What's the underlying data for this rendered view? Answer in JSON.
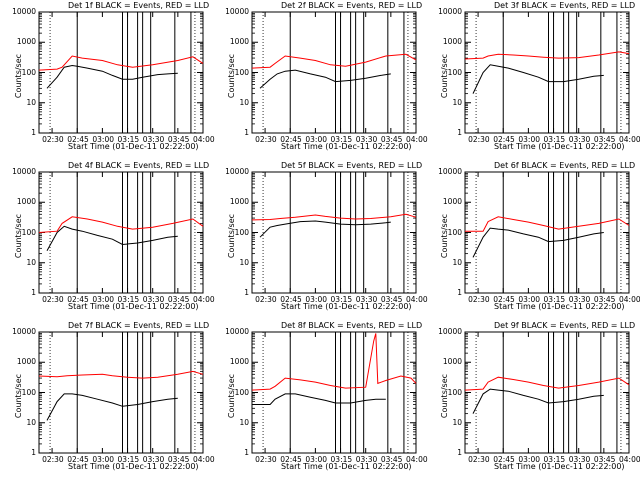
{
  "window": {
    "title": ""
  },
  "chart_data": [
    {
      "type": "line",
      "title": "Det 1f BLACK = Events, RED = LLD",
      "xlabel": "Start Time (01-Dec-11 02:22:00)",
      "ylabel": "Counts/sec",
      "y_scale": "log",
      "ylim": [
        1,
        10000
      ],
      "x_ticks": [
        "02:30",
        "02:45",
        "03:00",
        "03:15",
        "03:30",
        "03:45",
        "04:00"
      ],
      "y_ticks": [
        "1",
        "10",
        "100",
        "1000",
        "10000"
      ],
      "grid": false,
      "series": [
        {
          "color": "#000000",
          "x": [
            2.45,
            2.55,
            2.62,
            2.7,
            2.75,
            2.85,
            3.0,
            3.1,
            3.2,
            3.3,
            3.4,
            3.55,
            3.65,
            3.75
          ],
          "values": [
            30,
            70,
            150,
            170,
            160,
            140,
            110,
            80,
            60,
            60,
            70,
            85,
            90,
            95
          ]
        },
        {
          "color": "#ff0000",
          "x": [
            2.37,
            2.55,
            2.6,
            2.7,
            2.8,
            3.0,
            3.15,
            3.3,
            3.5,
            3.75,
            3.9,
            4.0
          ],
          "values": [
            120,
            130,
            150,
            350,
            300,
            250,
            180,
            150,
            180,
            250,
            330,
            200
          ]
        }
      ]
    },
    {
      "type": "line",
      "title": "Det 2f BLACK = Events, RED = LLD",
      "xlabel": "Start Time (01-Dec-11 02:22:00)",
      "ylabel": "Counts/sec",
      "y_scale": "log",
      "ylim": [
        1,
        10000
      ],
      "x_ticks": [
        "02:30",
        "02:45",
        "03:00",
        "03:15",
        "03:30",
        "03:45",
        "04:00"
      ],
      "y_ticks": [
        "1",
        "10",
        "100",
        "1000",
        "10000"
      ],
      "grid": false,
      "series": [
        {
          "color": "#000000",
          "x": [
            2.45,
            2.55,
            2.62,
            2.7,
            2.8,
            2.95,
            3.1,
            3.2,
            3.35,
            3.5,
            3.65,
            3.75
          ],
          "values": [
            30,
            60,
            90,
            110,
            120,
            90,
            70,
            50,
            55,
            65,
            80,
            90
          ]
        },
        {
          "color": "#ff0000",
          "x": [
            2.37,
            2.55,
            2.6,
            2.7,
            2.85,
            3.0,
            3.15,
            3.3,
            3.5,
            3.7,
            3.9,
            4.0
          ],
          "values": [
            140,
            150,
            200,
            350,
            300,
            250,
            180,
            160,
            220,
            350,
            400,
            260
          ]
        }
      ]
    },
    {
      "type": "line",
      "title": "Det 3f BLACK = Events, RED = LLD",
      "xlabel": "Start Time (01-Dec-11 02:22:00)",
      "ylabel": "Counts/sec",
      "y_scale": "log",
      "ylim": [
        1,
        10000
      ],
      "x_ticks": [
        "02:30",
        "02:45",
        "03:00",
        "03:15",
        "03:30",
        "03:45",
        "04:00"
      ],
      "y_ticks": [
        "1",
        "10",
        "100",
        "1000",
        "10000"
      ],
      "grid": false,
      "series": [
        {
          "color": "#000000",
          "x": [
            2.45,
            2.55,
            2.62,
            2.7,
            2.8,
            2.95,
            3.1,
            3.2,
            3.35,
            3.5,
            3.65,
            3.75
          ],
          "values": [
            20,
            100,
            180,
            160,
            140,
            100,
            70,
            50,
            50,
            60,
            75,
            80
          ]
        },
        {
          "color": "#ff0000",
          "x": [
            2.37,
            2.55,
            2.6,
            2.7,
            2.85,
            3.0,
            3.15,
            3.3,
            3.5,
            3.7,
            3.9,
            4.0
          ],
          "values": [
            280,
            300,
            350,
            400,
            380,
            350,
            320,
            300,
            310,
            380,
            480,
            420
          ]
        }
      ]
    },
    {
      "type": "line",
      "title": "Det 4f BLACK = Events, RED = LLD",
      "xlabel": "Start Time (01-Dec-11 02:22:00)",
      "ylabel": "Counts/sec",
      "y_scale": "log",
      "ylim": [
        1,
        10000
      ],
      "x_ticks": [
        "02:30",
        "02:45",
        "03:00",
        "03:15",
        "03:30",
        "03:45",
        "04:00"
      ],
      "y_ticks": [
        "1",
        "10",
        "100",
        "1000",
        "10000"
      ],
      "grid": false,
      "series": [
        {
          "color": "#000000",
          "x": [
            2.45,
            2.55,
            2.62,
            2.7,
            2.8,
            2.95,
            3.1,
            3.2,
            3.35,
            3.5,
            3.65,
            3.75
          ],
          "values": [
            25,
            100,
            160,
            130,
            110,
            80,
            60,
            40,
            45,
            55,
            70,
            75
          ]
        },
        {
          "color": "#ff0000",
          "x": [
            2.37,
            2.55,
            2.6,
            2.7,
            2.85,
            3.0,
            3.15,
            3.3,
            3.5,
            3.7,
            3.9,
            4.0
          ],
          "values": [
            100,
            110,
            200,
            330,
            280,
            220,
            160,
            130,
            150,
            200,
            280,
            160
          ]
        }
      ]
    },
    {
      "type": "line",
      "title": "Det 5f BLACK = Events, RED = LLD",
      "xlabel": "Start Time (01-Dec-11 02:22:00)",
      "ylabel": "Counts/sec",
      "y_scale": "log",
      "ylim": [
        1,
        10000
      ],
      "x_ticks": [
        "02:30",
        "02:45",
        "03:00",
        "03:15",
        "03:30",
        "03:45",
        "04:00"
      ],
      "y_ticks": [
        "1",
        "10",
        "100",
        "1000",
        "10000"
      ],
      "grid": false,
      "series": [
        {
          "color": "#000000",
          "x": [
            2.45,
            2.55,
            2.62,
            2.7,
            2.85,
            3.0,
            3.1,
            3.25,
            3.4,
            3.55,
            3.7,
            3.75
          ],
          "values": [
            70,
            150,
            170,
            190,
            230,
            240,
            220,
            190,
            180,
            190,
            210,
            220
          ]
        },
        {
          "color": "#ff0000",
          "x": [
            2.37,
            2.55,
            2.65,
            2.8,
            3.0,
            3.1,
            3.25,
            3.4,
            3.55,
            3.75,
            3.9,
            4.0
          ],
          "values": [
            260,
            270,
            290,
            320,
            380,
            340,
            300,
            280,
            290,
            330,
            400,
            320
          ]
        }
      ]
    },
    {
      "type": "line",
      "title": "Det 6f BLACK = Events, RED = LLD",
      "xlabel": "Start Time (01-Dec-11 02:22:00)",
      "ylabel": "Counts/sec",
      "y_scale": "log",
      "ylim": [
        1,
        10000
      ],
      "x_ticks": [
        "02:30",
        "02:45",
        "03:00",
        "03:15",
        "03:30",
        "03:45",
        "04:00"
      ],
      "y_ticks": [
        "1",
        "10",
        "100",
        "1000",
        "10000"
      ],
      "grid": false,
      "series": [
        {
          "color": "#000000",
          "x": [
            2.45,
            2.55,
            2.62,
            2.7,
            2.8,
            2.95,
            3.1,
            3.2,
            3.35,
            3.5,
            3.65,
            3.75
          ],
          "values": [
            15,
            70,
            140,
            130,
            120,
            90,
            70,
            50,
            55,
            70,
            90,
            100
          ]
        },
        {
          "color": "#ff0000",
          "x": [
            2.37,
            2.55,
            2.6,
            2.7,
            2.85,
            3.0,
            3.15,
            3.3,
            3.5,
            3.7,
            3.9,
            4.0
          ],
          "values": [
            110,
            110,
            230,
            330,
            270,
            220,
            170,
            130,
            160,
            200,
            280,
            170
          ]
        }
      ]
    },
    {
      "type": "line",
      "title": "Det 7f BLACK = Events, RED = LLD",
      "xlabel": "Start Time (01-Dec-11 02:22:00)",
      "ylabel": "Counts/sec",
      "y_scale": "log",
      "ylim": [
        1,
        10000
      ],
      "x_ticks": [
        "02:30",
        "02:45",
        "03:00",
        "03:15",
        "03:30",
        "03:45",
        "04:00"
      ],
      "y_ticks": [
        "1",
        "10",
        "100",
        "1000",
        "10000"
      ],
      "grid": false,
      "series": [
        {
          "color": "#000000",
          "x": [
            2.45,
            2.55,
            2.62,
            2.7,
            2.8,
            2.95,
            3.1,
            3.2,
            3.35,
            3.5,
            3.65,
            3.75
          ],
          "values": [
            12,
            50,
            90,
            90,
            80,
            60,
            45,
            35,
            40,
            50,
            60,
            65
          ]
        },
        {
          "color": "#ff0000",
          "x": [
            2.37,
            2.55,
            2.65,
            2.8,
            3.0,
            3.1,
            3.25,
            3.4,
            3.55,
            3.75,
            3.9,
            4.0
          ],
          "values": [
            350,
            330,
            360,
            380,
            400,
            360,
            320,
            300,
            320,
            400,
            500,
            400
          ]
        }
      ]
    },
    {
      "type": "line",
      "title": "Det 8f BLACK = Events, RED = LLD",
      "xlabel": "Start Time (01-Dec-11 02:22:00)",
      "ylabel": "Counts/sec",
      "y_scale": "log",
      "ylim": [
        1,
        10000
      ],
      "x_ticks": [
        "02:30",
        "02:45",
        "03:00",
        "03:15",
        "03:30",
        "03:45",
        "04:00"
      ],
      "y_ticks": [
        "1",
        "10",
        "100",
        "1000",
        "10000"
      ],
      "grid": false,
      "series": [
        {
          "color": "#000000",
          "x": [
            2.37,
            2.55,
            2.6,
            2.7,
            2.8,
            2.95,
            3.1,
            3.2,
            3.35,
            3.5,
            3.6,
            3.7
          ],
          "values": [
            40,
            40,
            60,
            90,
            90,
            70,
            55,
            45,
            45,
            55,
            60,
            60
          ]
        },
        {
          "color": "#ff0000",
          "x": [
            2.37,
            2.55,
            2.6,
            2.7,
            2.85,
            3.0,
            3.15,
            3.3,
            3.5,
            3.58,
            3.6,
            3.62,
            3.7,
            3.85,
            3.95,
            4.0
          ],
          "values": [
            120,
            130,
            160,
            300,
            260,
            220,
            170,
            140,
            150,
            5000,
            9000,
            200,
            250,
            350,
            300,
            200
          ]
        }
      ]
    },
    {
      "type": "line",
      "title": "Det 9f BLACK = Events, RED = LLD",
      "xlabel": "Start Time (01-Dec-11 02:22:00)",
      "ylabel": "Counts/sec",
      "y_scale": "log",
      "ylim": [
        1,
        10000
      ],
      "x_ticks": [
        "02:30",
        "02:45",
        "03:00",
        "03:15",
        "03:30",
        "03:45",
        "04:00"
      ],
      "y_ticks": [
        "1",
        "10",
        "100",
        "1000",
        "10000"
      ],
      "grid": false,
      "series": [
        {
          "color": "#000000",
          "x": [
            2.45,
            2.55,
            2.62,
            2.7,
            2.8,
            2.95,
            3.1,
            3.2,
            3.35,
            3.5,
            3.65,
            3.75
          ],
          "values": [
            20,
            90,
            130,
            120,
            110,
            80,
            60,
            45,
            50,
            60,
            75,
            80
          ]
        },
        {
          "color": "#ff0000",
          "x": [
            2.37,
            2.55,
            2.6,
            2.7,
            2.85,
            3.0,
            3.15,
            3.3,
            3.5,
            3.7,
            3.9,
            4.0
          ],
          "values": [
            120,
            130,
            220,
            320,
            270,
            220,
            170,
            140,
            170,
            220,
            300,
            180
          ]
        }
      ]
    }
  ]
}
